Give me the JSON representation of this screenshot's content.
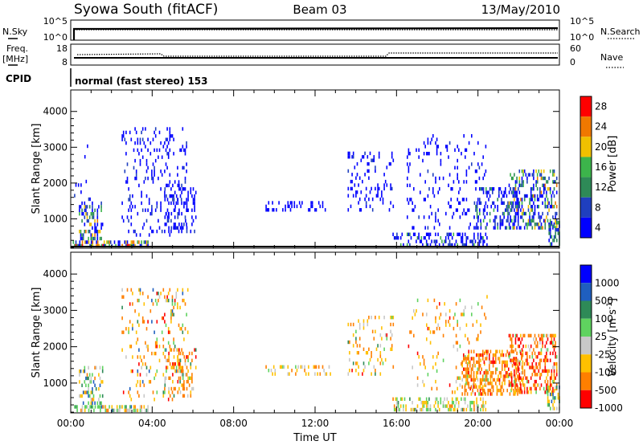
{
  "header": {
    "station": "Syowa South (fitACF)",
    "beam": "Beam 03",
    "date": "13/May/2010"
  },
  "noise_panel": {
    "left_label": "N.Sky",
    "right_label": "N.Search",
    "left_ticks": [
      "10^5",
      "10^0"
    ],
    "right_ticks": [
      "10^5",
      "10^0"
    ]
  },
  "freq_panel": {
    "left_label_1": "Freq.",
    "left_label_2": "[MHz]",
    "right_label": "Nave",
    "left_ticks": [
      "18",
      "8"
    ],
    "right_ticks": [
      "60",
      "0"
    ]
  },
  "cpid": {
    "label": "CPID",
    "text": "normal (fast stereo) 153"
  },
  "colors": {
    "power": [
      "#0000ff",
      "#1f3fbf",
      "#2e8a57",
      "#3cb44b",
      "#f0c000",
      "#f07800",
      "#ff0000"
    ],
    "velocity": [
      "#ff0000",
      "#ff7f00",
      "#ffc000",
      "#c8c8c8",
      "#5fd35f",
      "#2e8a57",
      "#1f5fbf",
      "#0000ff"
    ]
  },
  "chart_data": [
    {
      "type": "heatmap",
      "name": "power",
      "xlabel": "",
      "ylabel": "Slant Range [km]",
      "xlim": [
        0,
        24
      ],
      "ylim": [
        180,
        4600
      ],
      "yticks": [
        "1000",
        "2000",
        "3000",
        "4000"
      ],
      "colorbar": {
        "label": "Power [dB]",
        "ticks": [
          "4",
          "8",
          "12",
          "16",
          "20",
          "24",
          "28"
        ]
      },
      "clusters": [
        {
          "t0": 0.1,
          "t1": 3.9,
          "r0": 200,
          "r1": 380,
          "density": 0.55,
          "mix": [
            0.3,
            0.15,
            0.1,
            0.15,
            0.15,
            0.1,
            0.05
          ]
        },
        {
          "t0": 0.4,
          "t1": 1.6,
          "r0": 400,
          "r1": 1500,
          "density": 0.3,
          "mix": [
            0.4,
            0.2,
            0.15,
            0.1,
            0.1,
            0.05,
            0
          ]
        },
        {
          "t0": 0.1,
          "t1": 1.0,
          "r0": 1500,
          "r1": 3100,
          "density": 0.08,
          "mix": [
            0.9,
            0.1,
            0,
            0,
            0,
            0,
            0
          ]
        },
        {
          "t0": 2.5,
          "t1": 5.8,
          "r0": 500,
          "r1": 3600,
          "density": 0.12,
          "mix": [
            0.85,
            0.15,
            0,
            0,
            0,
            0,
            0
          ]
        },
        {
          "t0": 4.6,
          "t1": 6.2,
          "r0": 600,
          "r1": 2000,
          "density": 0.25,
          "mix": [
            0.9,
            0.1,
            0,
            0,
            0,
            0,
            0
          ]
        },
        {
          "t0": 9.5,
          "t1": 12.8,
          "r0": 1200,
          "r1": 1500,
          "density": 0.2,
          "mix": [
            1,
            0,
            0,
            0,
            0,
            0,
            0
          ]
        },
        {
          "t0": 13.6,
          "t1": 15.9,
          "r0": 1200,
          "r1": 2900,
          "density": 0.15,
          "mix": [
            0.9,
            0.1,
            0,
            0,
            0,
            0,
            0
          ]
        },
        {
          "t0": 15.8,
          "t1": 20.5,
          "r0": 220,
          "r1": 650,
          "density": 0.4,
          "mix": [
            0.75,
            0.15,
            0.05,
            0.05,
            0,
            0,
            0
          ]
        },
        {
          "t0": 16.5,
          "t1": 20.5,
          "r0": 700,
          "r1": 3400,
          "density": 0.08,
          "mix": [
            0.95,
            0.05,
            0,
            0,
            0,
            0,
            0
          ]
        },
        {
          "t0": 19.8,
          "t1": 22.0,
          "r0": 700,
          "r1": 1900,
          "density": 0.3,
          "mix": [
            0.55,
            0.25,
            0.1,
            0.1,
            0,
            0,
            0
          ]
        },
        {
          "t0": 21.5,
          "t1": 23.9,
          "r0": 700,
          "r1": 2400,
          "density": 0.35,
          "mix": [
            0.35,
            0.2,
            0.15,
            0.15,
            0.1,
            0.05,
            0
          ]
        },
        {
          "t0": 23.4,
          "t1": 24.0,
          "r0": 250,
          "r1": 900,
          "density": 0.45,
          "mix": [
            0.2,
            0.2,
            0.2,
            0.2,
            0.1,
            0.05,
            0.05
          ]
        }
      ]
    },
    {
      "type": "heatmap",
      "name": "velocity",
      "xlabel": "Time UT",
      "ylabel": "Slant Range [km]",
      "xlim": [
        0,
        24
      ],
      "ylim": [
        180,
        4600
      ],
      "xticks": [
        "00:00",
        "04:00",
        "08:00",
        "12:00",
        "16:00",
        "20:00",
        "00:00"
      ],
      "yticks": [
        "1000",
        "2000",
        "3000",
        "4000"
      ],
      "colorbar": {
        "label": "Velocity [m s^-1]",
        "ticks": [
          "1000",
          "500",
          "100",
          "25",
          "-25",
          "-100",
          "-500",
          "-1000"
        ]
      },
      "clusters": [
        {
          "t0": 0.1,
          "t1": 3.9,
          "r0": 200,
          "r1": 400,
          "density": 0.55,
          "mix": [
            0,
            0.05,
            0.2,
            0.2,
            0.45,
            0.05,
            0.05,
            0
          ]
        },
        {
          "t0": 0.4,
          "t1": 1.6,
          "r0": 400,
          "r1": 1500,
          "density": 0.3,
          "mix": [
            0,
            0.1,
            0.2,
            0.1,
            0.3,
            0.1,
            0.2,
            0
          ]
        },
        {
          "t0": 2.5,
          "t1": 5.8,
          "r0": 500,
          "r1": 3600,
          "density": 0.12,
          "mix": [
            0.05,
            0.4,
            0.25,
            0.1,
            0.1,
            0.05,
            0.05,
            0
          ]
        },
        {
          "t0": 4.6,
          "t1": 6.2,
          "r0": 600,
          "r1": 2000,
          "density": 0.25,
          "mix": [
            0.1,
            0.45,
            0.25,
            0.1,
            0.05,
            0.05,
            0,
            0
          ]
        },
        {
          "t0": 9.5,
          "t1": 12.8,
          "r0": 1200,
          "r1": 1500,
          "density": 0.2,
          "mix": [
            0,
            0.3,
            0.4,
            0.2,
            0.1,
            0,
            0,
            0
          ]
        },
        {
          "t0": 13.6,
          "t1": 15.9,
          "r0": 1200,
          "r1": 2900,
          "density": 0.15,
          "mix": [
            0.05,
            0.3,
            0.35,
            0.15,
            0.1,
            0.05,
            0,
            0
          ]
        },
        {
          "t0": 15.8,
          "t1": 20.5,
          "r0": 220,
          "r1": 650,
          "density": 0.4,
          "mix": [
            0,
            0.05,
            0.35,
            0.25,
            0.3,
            0.05,
            0,
            0
          ]
        },
        {
          "t0": 16.5,
          "t1": 20.5,
          "r0": 700,
          "r1": 3400,
          "density": 0.08,
          "mix": [
            0.05,
            0.35,
            0.3,
            0.2,
            0.1,
            0,
            0,
            0
          ]
        },
        {
          "t0": 19.2,
          "t1": 22.2,
          "r0": 650,
          "r1": 1900,
          "density": 0.45,
          "mix": [
            0.15,
            0.6,
            0.15,
            0.05,
            0.05,
            0,
            0,
            0
          ]
        },
        {
          "t0": 21.5,
          "t1": 23.9,
          "r0": 700,
          "r1": 2400,
          "density": 0.4,
          "mix": [
            0.35,
            0.45,
            0.1,
            0.05,
            0.05,
            0,
            0,
            0
          ]
        },
        {
          "t0": 23.4,
          "t1": 24.0,
          "r0": 250,
          "r1": 900,
          "density": 0.45,
          "mix": [
            0,
            0.1,
            0.2,
            0.1,
            0.3,
            0.1,
            0.2,
            0
          ]
        }
      ]
    }
  ]
}
